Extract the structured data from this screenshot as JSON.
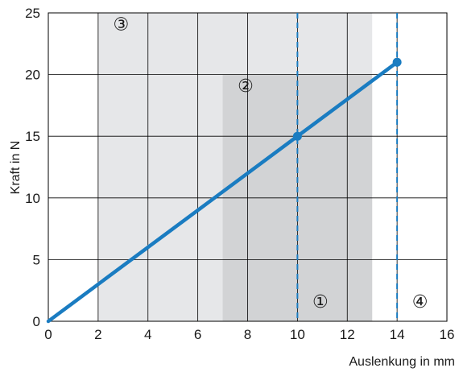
{
  "chart_data": {
    "type": "line",
    "xlabel": "Auslenkung in mm",
    "ylabel": "Kraft in N",
    "xlim": [
      0,
      16
    ],
    "ylim": [
      0,
      25
    ],
    "xticks": [
      "0",
      "2",
      "4",
      "6",
      "8",
      "10",
      "12",
      "14",
      "16"
    ],
    "yticks": [
      "0",
      "5",
      "10",
      "15",
      "20",
      "25"
    ],
    "grid": true,
    "colors": {
      "line": "#1a7cc1",
      "region_light": "#e6e7e9",
      "region_dark": "#d2d3d5",
      "dashed": "#1a7cc1"
    },
    "series": [
      {
        "x": [
          0,
          14
        ],
        "y": [
          0,
          21
        ]
      }
    ],
    "points": [
      {
        "x": 10,
        "y": 15
      },
      {
        "x": 14,
        "y": 21
      }
    ],
    "regions": [
      {
        "x_range": [
          2,
          13
        ],
        "y_range": [
          0,
          25
        ],
        "shade": "light"
      },
      {
        "x_range": [
          7,
          13
        ],
        "y_range": [
          0,
          20
        ],
        "shade": "dark"
      }
    ],
    "vlines": [
      10,
      14
    ],
    "annotations": [
      {
        "text": "①",
        "x": 10.6,
        "y": 1.1
      },
      {
        "text": "②",
        "x": 7.6,
        "y": 18.6
      },
      {
        "text": "③",
        "x": 2.6,
        "y": 23.6
      },
      {
        "text": "④",
        "x": 14.6,
        "y": 1.1
      }
    ]
  }
}
